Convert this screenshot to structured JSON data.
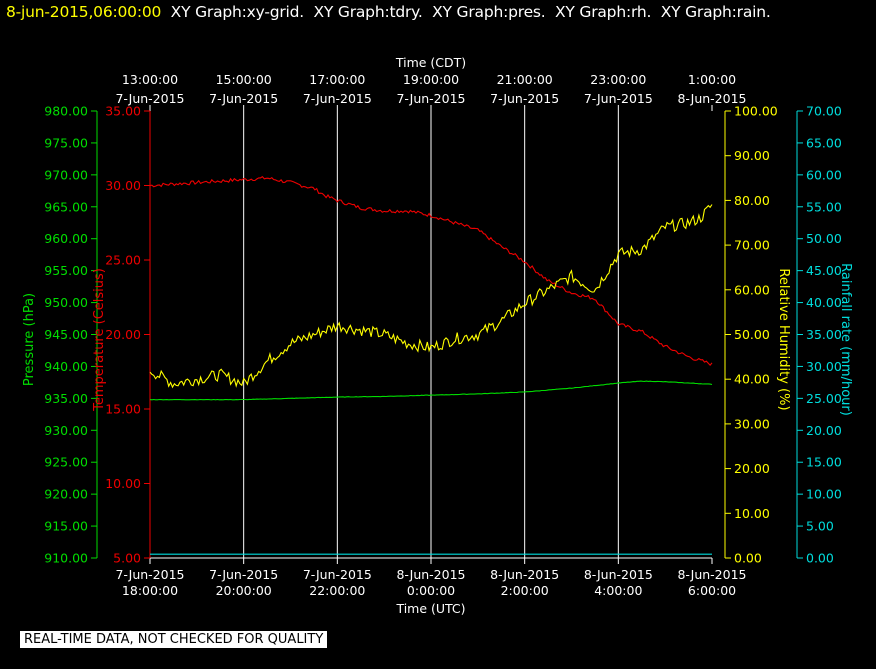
{
  "header": {
    "timestamp": "8-jun-2015,06:00:00",
    "graph_titles": [
      "XY Graph:xy-grid.",
      "XY Graph:tdry.",
      "XY Graph:pres.",
      "XY Graph:rh.",
      "XY Graph:rain."
    ]
  },
  "footer_note": "REAL-TIME DATA, NOT CHECKED FOR QUALITY",
  "colors": {
    "background": "#000000",
    "pressure": "#00dd00",
    "temperature": "#ee0000",
    "humidity": "#ffff00",
    "rain": "#00dddd",
    "grid": "#ffffff",
    "axis_text": "#ffffff"
  },
  "chart_data": {
    "type": "line",
    "top_axis": {
      "label": "Time (CDT)",
      "ticks": [
        {
          "h": 0,
          "time": "13:00:00",
          "date": "7-Jun-2015"
        },
        {
          "h": 2,
          "time": "15:00:00",
          "date": "7-Jun-2015"
        },
        {
          "h": 4,
          "time": "17:00:00",
          "date": "7-Jun-2015"
        },
        {
          "h": 6,
          "time": "19:00:00",
          "date": "7-Jun-2015"
        },
        {
          "h": 8,
          "time": "21:00:00",
          "date": "7-Jun-2015"
        },
        {
          "h": 10,
          "time": "23:00:00",
          "date": "7-Jun-2015"
        },
        {
          "h": 12,
          "time": "1:00:00",
          "date": "8-Jun-2015"
        }
      ]
    },
    "bottom_axis": {
      "label": "Time (UTC)",
      "ticks": [
        {
          "h": 0,
          "date": "7-Jun-2015",
          "time": "18:00:00"
        },
        {
          "h": 2,
          "date": "7-Jun-2015",
          "time": "20:00:00"
        },
        {
          "h": 4,
          "date": "7-Jun-2015",
          "time": "22:00:00"
        },
        {
          "h": 6,
          "date": "8-Jun-2015",
          "time": "0:00:00"
        },
        {
          "h": 8,
          "date": "8-Jun-2015",
          "time": "2:00:00"
        },
        {
          "h": 10,
          "date": "8-Jun-2015",
          "time": "4:00:00"
        },
        {
          "h": 12,
          "date": "8-Jun-2015",
          "time": "6:00:00"
        }
      ],
      "range_hours": [
        0,
        12
      ]
    },
    "y_axes": {
      "pressure": {
        "label": "Pressure (hPa)",
        "min": 910,
        "max": 980,
        "step": 5
      },
      "temperature": {
        "label": "Temperature (Celsius)",
        "min": 5,
        "max": 35,
        "step": 5
      },
      "humidity": {
        "label": "Relative Humidity (%)",
        "min": 0,
        "max": 100,
        "step": 10
      },
      "rain": {
        "label": "Rainfall rate (mm/hour)",
        "min": 0,
        "max": 70,
        "step": 5
      }
    },
    "grid": true,
    "series": [
      {
        "key": "temperature",
        "points": [
          [
            0,
            30.0
          ],
          [
            0.5,
            30.1
          ],
          [
            1,
            30.2
          ],
          [
            1.5,
            30.3
          ],
          [
            2,
            30.4
          ],
          [
            2.5,
            30.5
          ],
          [
            3,
            30.2
          ],
          [
            3.5,
            29.8
          ],
          [
            3.75,
            29.3
          ],
          [
            4,
            29.0
          ],
          [
            4.5,
            28.5
          ],
          [
            5,
            28.3
          ],
          [
            5.5,
            28.3
          ],
          [
            6,
            28.0
          ],
          [
            6.5,
            27.5
          ],
          [
            7,
            27.0
          ],
          [
            7.5,
            25.9
          ],
          [
            8,
            24.9
          ],
          [
            8.5,
            23.6
          ],
          [
            9,
            22.8
          ],
          [
            9.5,
            22.4
          ],
          [
            10,
            20.7
          ],
          [
            10.5,
            20.2
          ],
          [
            11,
            19.2
          ],
          [
            11.5,
            18.5
          ],
          [
            12,
            18.0
          ]
        ]
      },
      {
        "key": "humidity",
        "points": [
          [
            0,
            42
          ],
          [
            0.5,
            39
          ],
          [
            1,
            40
          ],
          [
            1.5,
            41
          ],
          [
            2,
            39
          ],
          [
            2.5,
            44
          ],
          [
            3,
            48
          ],
          [
            3.5,
            50
          ],
          [
            4,
            52
          ],
          [
            4.5,
            51
          ],
          [
            5,
            50
          ],
          [
            5.5,
            48
          ],
          [
            6,
            47
          ],
          [
            6.5,
            49
          ],
          [
            7,
            50
          ],
          [
            7.5,
            53
          ],
          [
            8,
            57
          ],
          [
            8.5,
            60
          ],
          [
            9,
            63
          ],
          [
            9.5,
            60
          ],
          [
            10,
            68
          ],
          [
            10.5,
            69
          ],
          [
            11,
            74
          ],
          [
            11.5,
            75
          ],
          [
            11.75,
            76
          ],
          [
            12,
            79
          ]
        ]
      },
      {
        "key": "pressure",
        "points": [
          [
            0,
            934.8
          ],
          [
            1,
            934.8
          ],
          [
            2,
            934.8
          ],
          [
            3,
            935.0
          ],
          [
            4,
            935.2
          ],
          [
            5,
            935.3
          ],
          [
            6,
            935.5
          ],
          [
            7,
            935.7
          ],
          [
            8,
            936.0
          ],
          [
            9,
            936.6
          ],
          [
            10,
            937.4
          ],
          [
            10.5,
            937.7
          ],
          [
            11,
            937.6
          ],
          [
            12,
            937.2
          ]
        ]
      },
      {
        "key": "rain",
        "points": [
          [
            0,
            0.6
          ],
          [
            12,
            0.6
          ]
        ]
      }
    ]
  }
}
